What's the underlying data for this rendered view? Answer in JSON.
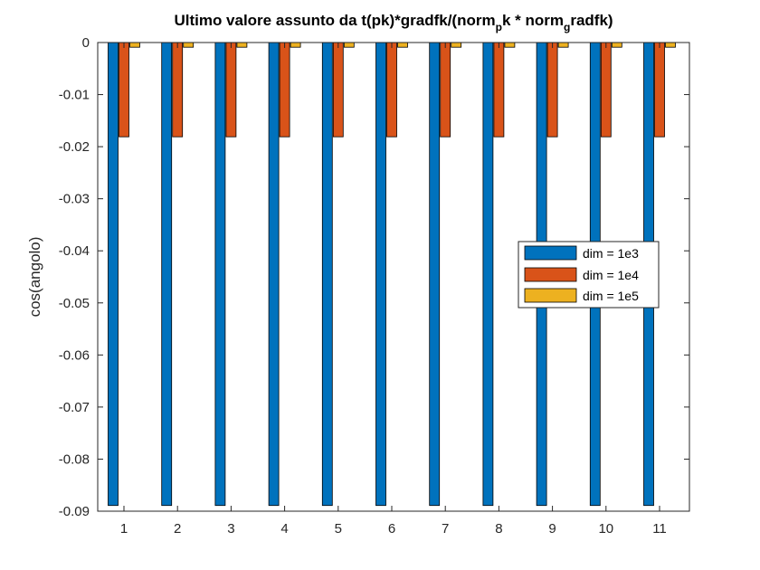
{
  "chart_data": {
    "type": "bar",
    "title": {
      "main": "Ultimo valore assunto da t(pk)*gradfk/(norm",
      "sub1": "p",
      "mid": "k * norm",
      "sub2": "g",
      "end": "radfk)"
    },
    "xlabel": "",
    "ylabel": "cos(angolo)",
    "categories": [
      "1",
      "2",
      "3",
      "4",
      "5",
      "6",
      "7",
      "8",
      "9",
      "10",
      "11"
    ],
    "ylim": [
      -0.09,
      0
    ],
    "yticks": [
      0,
      -0.01,
      -0.02,
      -0.03,
      -0.04,
      -0.05,
      -0.06,
      -0.07,
      -0.08,
      -0.09
    ],
    "ytick_labels": [
      "0",
      "-0.01",
      "-0.02",
      "-0.03",
      "-0.04",
      "-0.05",
      "-0.06",
      "-0.07",
      "-0.08",
      "-0.09"
    ],
    "grid": false,
    "legend_position": "right",
    "series": [
      {
        "name": "dim = 1e3",
        "color": "#0072BD",
        "values": [
          -0.0889,
          -0.0889,
          -0.0889,
          -0.0889,
          -0.0889,
          -0.0889,
          -0.0889,
          -0.0889,
          -0.0889,
          -0.0889,
          -0.0889
        ]
      },
      {
        "name": "dim = 1e4",
        "color": "#D95319",
        "values": [
          -0.0181,
          -0.0181,
          -0.0181,
          -0.0181,
          -0.0181,
          -0.0181,
          -0.0181,
          -0.0181,
          -0.0181,
          -0.0181,
          -0.0181
        ]
      },
      {
        "name": "dim = 1e5",
        "color": "#EDB120",
        "values": [
          -0.0009,
          -0.0009,
          -0.0009,
          -0.0009,
          -0.0009,
          -0.0009,
          -0.0009,
          -0.0009,
          -0.0009,
          -0.0009,
          -0.0009
        ]
      }
    ]
  }
}
